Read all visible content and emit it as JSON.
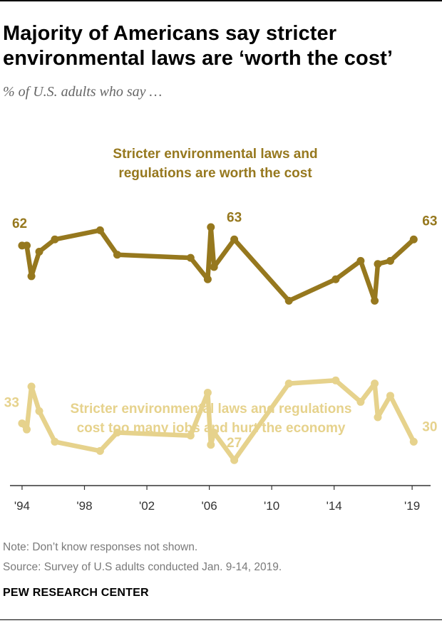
{
  "title": "Majority of Americans say stricter environmental laws are ‘worth the cost’",
  "subtitle": "% of U.S. adults who say …",
  "colors": {
    "worth": "#96781e",
    "cost": "#e6d28c",
    "axis": "#333333",
    "note": "#7a7a7a"
  },
  "chart_data": {
    "type": "line",
    "x_ticks": [
      "'94",
      "'98",
      "'02",
      "'06",
      "'10",
      "'14",
      "'19"
    ],
    "x_tick_years": [
      1994,
      1998,
      2002,
      2006,
      2010,
      2014,
      2019
    ],
    "xlim": [
      1993.5,
      2020
    ],
    "ylim": [
      20,
      70
    ],
    "series": [
      {
        "name": "Stricter environmental laws and regulations are worth the cost",
        "label_lines": [
          "Stricter environmental laws and",
          "regulations are worth the cost"
        ],
        "x": [
          1994.0,
          1994.3,
          1994.6,
          1995.1,
          1996.1,
          1999.0,
          2000.1,
          2004.8,
          2005.9,
          2006.1,
          2006.3,
          2007.6,
          2011.1,
          2014.1,
          2015.7,
          2016.6,
          2016.8,
          2017.6,
          2019.1
        ],
        "values": [
          62,
          62,
          57,
          61,
          63,
          64.5,
          60.5,
          60,
          56.5,
          65,
          58.5,
          63,
          53,
          56.5,
          59.5,
          53,
          59,
          59.5,
          63
        ],
        "labels": [
          {
            "text": "62",
            "index": 0,
            "anchor": "start",
            "dx": -14,
            "dy": -25
          },
          {
            "text": "63",
            "index": 11,
            "anchor": "middle",
            "dx": 0,
            "dy": -25
          },
          {
            "text": "63",
            "index": 18,
            "anchor": "start",
            "dx": 12,
            "dy": -20
          }
        ]
      },
      {
        "name": "Stricter environmental laws and regulations cost too many jobs and hurt the economy",
        "label_lines": [
          "Stricter environmental laws and regulations",
          "cost too many jobs and hurt the economy"
        ],
        "x": [
          1994.0,
          1994.3,
          1994.6,
          1995.1,
          1996.1,
          1999.0,
          2000.1,
          2004.8,
          2005.9,
          2006.1,
          2006.3,
          2007.6,
          2011.1,
          2014.1,
          2015.7,
          2016.6,
          2016.8,
          2017.6,
          2019.1
        ],
        "values": [
          33,
          32,
          39,
          35,
          30,
          28.5,
          31.5,
          31,
          38,
          29.5,
          31.5,
          27,
          39.5,
          40,
          36.5,
          39.5,
          34,
          37.5,
          30
        ],
        "labels": [
          {
            "text": "33",
            "index": 0,
            "anchor": "end",
            "dx": -4,
            "dy": -23
          },
          {
            "text": "27",
            "index": 11,
            "anchor": "middle",
            "dx": 0,
            "dy": -18
          },
          {
            "text": "30",
            "index": 18,
            "anchor": "start",
            "dx": 12,
            "dy": -15
          }
        ]
      }
    ],
    "title": "Majority of Americans say stricter environmental laws are ‘worth the cost’",
    "xlabel": "",
    "ylabel": "% of U.S. adults who say …",
    "grid": false,
    "legend": "direct labels"
  },
  "notes": {
    "note": "Note: Don’t know responses not shown.",
    "source": "Source: Survey of U.S adults conducted Jan. 9-14, 2019."
  },
  "brand": "PEW RESEARCH CENTER"
}
